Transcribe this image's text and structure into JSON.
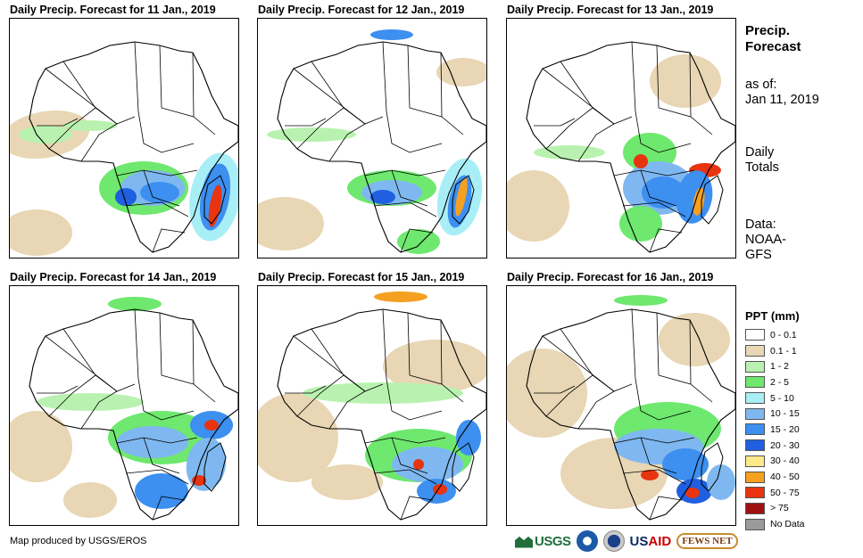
{
  "panels": [
    {
      "title": "Daily Precip. Forecast for 11 Jan., 2019"
    },
    {
      "title": "Daily Precip. Forecast for 12 Jan., 2019"
    },
    {
      "title": "Daily Precip. Forecast for 13 Jan., 2019"
    },
    {
      "title": "Daily Precip. Forecast for 14 Jan., 2019"
    },
    {
      "title": "Daily Precip. Forecast for 15 Jan., 2019"
    },
    {
      "title": "Daily Precip. Forecast for 16 Jan., 2019"
    }
  ],
  "sidebar": {
    "title_line1": "Precip.",
    "title_line2": "Forecast",
    "asof_label": "as of:",
    "asof_date": "Jan 11, 2019",
    "totals_line1": "Daily",
    "totals_line2": "Totals",
    "data_line1": "Data:",
    "data_line2": "NOAA-",
    "data_line3": "GFS"
  },
  "legend": {
    "title": "PPT (mm)",
    "items": [
      {
        "label": "0 - 0.1",
        "color": "#ffffff"
      },
      {
        "label": "0.1 - 1",
        "color": "#e8d6b4"
      },
      {
        "label": "1 - 2",
        "color": "#b9f2b0"
      },
      {
        "label": "2 - 5",
        "color": "#6ee86e"
      },
      {
        "label": "5 - 10",
        "color": "#a8eef7"
      },
      {
        "label": "10 - 15",
        "color": "#7fb8f0"
      },
      {
        "label": "15 - 20",
        "color": "#3d8ff0"
      },
      {
        "label": "20 - 30",
        "color": "#1f5fe0"
      },
      {
        "label": "30 - 40",
        "color": "#fde98a"
      },
      {
        "label": "40 - 50",
        "color": "#f5a020"
      },
      {
        "label": "50 - 75",
        "color": "#e8340f"
      },
      {
        "label": "> 75",
        "color": "#a01010"
      },
      {
        "label": "No Data",
        "color": "#9a9a9a"
      }
    ]
  },
  "footer": {
    "credit": "Map produced by USGS/EROS",
    "logo_usgs": "USGS",
    "logo_usaid_a": "US",
    "logo_usaid_b": "AID",
    "logo_fews": "FEWS NET"
  },
  "logos": {
    "noaa_color": "#1c5aa8",
    "usgs_color": "#1f6e3b"
  }
}
